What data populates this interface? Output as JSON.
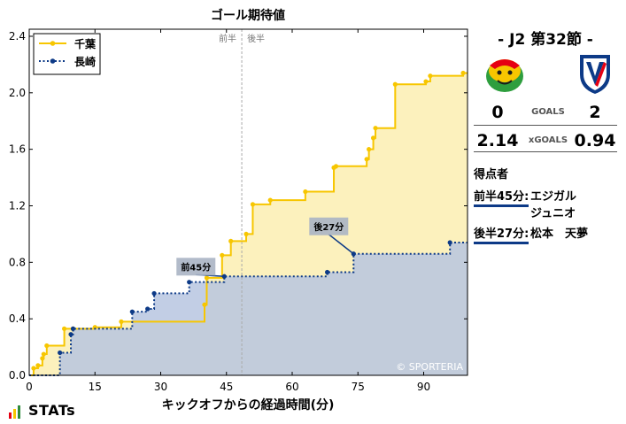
{
  "chart_data": {
    "type": "line",
    "title": "ゴール期待値",
    "xlabel": "キックオフからの経過時間(分)",
    "ylabel": "",
    "xlim": [
      0,
      100
    ],
    "ylim": [
      0,
      2.45
    ],
    "xticks": [
      0,
      15,
      30,
      45,
      60,
      75,
      90
    ],
    "yticks": [
      "0.0",
      "0.4",
      "0.8",
      "1.2",
      "1.6",
      "2.0",
      "2.4"
    ],
    "half_line_x": 48.5,
    "half_labels": {
      "first": "前半",
      "second": "後半"
    },
    "watermark": "© SPORTERIA",
    "legend_position": "top-left",
    "series": [
      {
        "name": "千葉",
        "color": "#f7c600",
        "fill": "#fcefb2",
        "style": "solid",
        "points": [
          [
            0,
            0
          ],
          [
            1,
            0.05
          ],
          [
            2,
            0.07
          ],
          [
            3,
            0.12
          ],
          [
            3.3,
            0.15
          ],
          [
            4,
            0.21
          ],
          [
            8,
            0.33
          ],
          [
            10,
            0.33
          ],
          [
            15,
            0.34
          ],
          [
            21,
            0.38
          ],
          [
            40,
            0.5
          ],
          [
            40.5,
            0.69
          ],
          [
            44,
            0.85
          ],
          [
            46,
            0.95
          ],
          [
            49.5,
            1.0
          ],
          [
            51,
            1.21
          ],
          [
            55,
            1.24
          ],
          [
            63,
            1.3
          ],
          [
            69.5,
            1.47
          ],
          [
            70,
            1.48
          ],
          [
            77,
            1.53
          ],
          [
            77.5,
            1.6
          ],
          [
            78.5,
            1.68
          ],
          [
            79,
            1.75
          ],
          [
            83.5,
            2.06
          ],
          [
            90.5,
            2.08
          ],
          [
            91.5,
            2.12
          ],
          [
            99,
            2.14
          ]
        ],
        "end_x": 100
      },
      {
        "name": "長崎",
        "color": "#0d3a87",
        "fill": "#b7c6e0",
        "style": "dotted",
        "points": [
          [
            0,
            0
          ],
          [
            7,
            0.16
          ],
          [
            9.5,
            0.29
          ],
          [
            10,
            0.33
          ],
          [
            23.5,
            0.45
          ],
          [
            27,
            0.47
          ],
          [
            28.5,
            0.58
          ],
          [
            36.5,
            0.66
          ],
          [
            44.5,
            0.7
          ],
          [
            68,
            0.73
          ],
          [
            74,
            0.86
          ],
          [
            96,
            0.94
          ]
        ],
        "end_x": 100
      }
    ],
    "goal_annotations": [
      {
        "label": "前45分",
        "x": 44.5,
        "y": 0.7,
        "series": "長崎"
      },
      {
        "label": "後27分",
        "x": 74,
        "y": 0.86,
        "series": "長崎"
      }
    ]
  },
  "match": {
    "title": "- J2 第32節 -",
    "home_goals": "0",
    "away_goals": "2",
    "goals_label": "GOALS",
    "home_xg": "2.14",
    "away_xg": "0.94",
    "xg_label": "xGOALS",
    "scorers_heading": "得点者",
    "scorers": [
      {
        "time": "前半45分:",
        "name_line1": "エジガル",
        "name_line2": "ジュニオ"
      },
      {
        "time": "後半27分:",
        "name_line1": "松本　天夢",
        "name_line2": ""
      }
    ],
    "brand": "STATs",
    "brand_colors": [
      "#e60012",
      "#f7c600",
      "#2e8b3a"
    ]
  }
}
